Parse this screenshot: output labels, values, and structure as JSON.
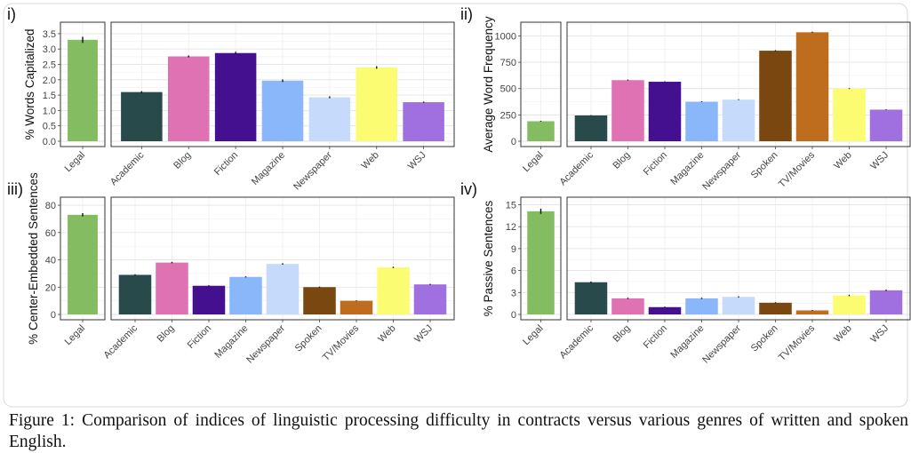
{
  "caption": {
    "label": "Figure 1:",
    "text": "Comparison of indices of linguistic processing difficulty in contracts versus various genres of written and spoken English."
  },
  "colors": {
    "Legal": "#84bc62",
    "Academic": "#284a4a",
    "Blog": "#de72b2",
    "Fiction": "#441090",
    "Magazine": "#8ab6fa",
    "Newspaper": "#c6dafc",
    "Spoken": "#7a4710",
    "TV/Movies": "#be6c1e",
    "Web": "#fcfc72",
    "WSJ": "#a070e0"
  },
  "chart_data": [
    {
      "type": "bar",
      "panel": "i)",
      "ylabel": "% Words Capitalized",
      "ylim": [
        0,
        3.7
      ],
      "yticks": [
        0.0,
        0.5,
        1.0,
        1.5,
        2.0,
        2.5,
        3.0,
        3.5
      ],
      "ytick_labels": [
        "0.0",
        "0.5",
        "1.0",
        "1.5",
        "2.0",
        "2.5",
        "3.0",
        "3.5"
      ],
      "categories": [
        "Legal",
        "Academic",
        "Blog",
        "Fiction",
        "Magazine",
        "Newspaper",
        "Web",
        "WSJ"
      ],
      "values": [
        3.3,
        1.6,
        2.76,
        2.87,
        1.97,
        1.43,
        2.4,
        1.27
      ],
      "errors": [
        0.1,
        0.03,
        0.03,
        0.04,
        0.04,
        0.03,
        0.04,
        0.02
      ]
    },
    {
      "type": "bar",
      "panel": "ii)",
      "ylabel": "Average Word Frequency",
      "ylim": [
        0,
        1080
      ],
      "yticks": [
        0,
        250,
        500,
        750,
        1000
      ],
      "ytick_labels": [
        "0",
        "250",
        "500",
        "750",
        "1000"
      ],
      "categories": [
        "Legal",
        "Academic",
        "Blog",
        "Fiction",
        "Magazine",
        "Newspaper",
        "Spoken",
        "TV/Movies",
        "Web",
        "WSJ"
      ],
      "values": [
        190,
        245,
        580,
        565,
        375,
        395,
        860,
        1035,
        500,
        300
      ],
      "errors": [
        4,
        3,
        5,
        4,
        4,
        4,
        5,
        5,
        4,
        3
      ]
    },
    {
      "type": "bar",
      "panel": "iii)",
      "ylabel": "% Center-Embedded Sentences",
      "ylim": [
        0,
        82
      ],
      "yticks": [
        0,
        20,
        40,
        60,
        80
      ],
      "ytick_labels": [
        "0",
        "20",
        "40",
        "60",
        "80"
      ],
      "categories": [
        "Legal",
        "Academic",
        "Blog",
        "Fiction",
        "Magazine",
        "Newspaper",
        "Spoken",
        "TV/Movies",
        "Web",
        "WSJ"
      ],
      "values": [
        73,
        29,
        38,
        21,
        27.5,
        37,
        20,
        10,
        34.5,
        22
      ],
      "errors": [
        1.2,
        0.4,
        0.5,
        0.4,
        0.4,
        0.5,
        0.4,
        0.3,
        0.5,
        0.4
      ]
    },
    {
      "type": "bar",
      "panel": "iv)",
      "ylabel": "% Passive Sentences",
      "ylim": [
        0,
        15.3
      ],
      "yticks": [
        0,
        3,
        6,
        9,
        12,
        15
      ],
      "ytick_labels": [
        "0",
        "3",
        "6",
        "9",
        "12",
        "15"
      ],
      "categories": [
        "Legal",
        "Academic",
        "Blog",
        "Fiction",
        "Magazine",
        "Newspaper",
        "Spoken",
        "TV/Movies",
        "Web",
        "WSJ"
      ],
      "values": [
        14.1,
        4.4,
        2.2,
        1.0,
        2.2,
        2.4,
        1.6,
        0.55,
        2.6,
        3.3
      ],
      "errors": [
        0.35,
        0.1,
        0.08,
        0.06,
        0.08,
        0.08,
        0.07,
        0.05,
        0.09,
        0.09
      ]
    }
  ]
}
